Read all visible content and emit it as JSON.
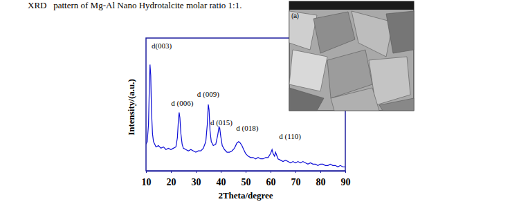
{
  "chart_data": {
    "type": "line",
    "title": "XRD   pattern of Mg-Al Nano Hydrotalcite molar ratio 1:1.",
    "x_label": "2Theta/degree",
    "y_label": "Intensity/(a.u.)",
    "x": [
      10,
      10.5,
      11,
      11.3,
      11.6,
      11.9,
      12.2,
      12.6,
      13,
      13.5,
      14,
      15,
      16,
      17,
      18,
      19,
      20,
      21,
      22,
      22.6,
      23,
      23.3,
      23.6,
      24,
      24.5,
      25,
      26,
      27,
      28,
      29,
      30,
      31,
      32,
      33,
      34,
      34.6,
      35,
      35.3,
      35.7,
      36.2,
      37,
      38,
      38.8,
      39.3,
      39.6,
      40,
      40.6,
      41.5,
      42.5,
      43.5,
      44.5,
      45.5,
      46.5,
      47.2,
      47.8,
      48.5,
      49.2,
      50,
      51,
      52,
      53,
      54,
      55,
      56,
      57,
      58,
      59,
      60,
      60.6,
      61,
      61.6,
      62,
      62.4,
      63,
      64,
      65,
      66,
      67,
      68,
      69,
      70,
      71,
      72,
      73,
      74,
      75,
      76,
      77,
      78,
      79,
      80,
      81,
      82,
      83,
      84,
      85,
      86,
      87,
      88,
      89,
      90
    ],
    "series": [
      {
        "name": "Mg-Al Nano Hydrotalcite",
        "color": "#0d0dd6",
        "values": [
          20,
          22,
          35,
          60,
          80,
          72,
          45,
          28,
          22,
          20,
          18,
          19,
          17,
          18,
          16,
          17,
          16,
          17,
          18,
          25,
          38,
          44,
          40,
          28,
          20,
          17,
          16,
          15,
          16,
          15,
          14,
          15,
          15,
          17,
          22,
          35,
          50,
          46,
          30,
          22,
          19,
          20,
          27,
          33,
          32,
          26,
          19,
          16,
          14,
          14,
          15,
          17,
          21,
          22,
          21,
          19,
          16,
          13,
          11,
          10,
          10,
          9,
          10,
          9,
          9,
          10,
          10,
          13,
          16,
          13,
          11,
          14,
          12,
          9,
          8,
          7,
          8,
          7,
          6,
          7,
          6,
          7,
          6,
          7,
          6,
          5,
          6,
          5,
          5,
          4,
          5,
          5,
          4,
          4,
          5,
          4,
          4,
          3,
          4,
          3,
          3
        ]
      }
    ],
    "xlim": [
      10,
      90
    ],
    "xticks": [
      10,
      20,
      30,
      40,
      50,
      60,
      70,
      80,
      90
    ],
    "ylim": [
      0,
      100
    ],
    "tick_labels": "x",
    "annotations": [
      {
        "text": "d(003)",
        "x": 12.2,
        "y": 92
      },
      {
        "text": "d (006)",
        "x": 20.1,
        "y": 49
      },
      {
        "text": "d (009)",
        "x": 30.5,
        "y": 55.7
      },
      {
        "text": "d (015)",
        "x": 35.8,
        "y": 34.4
      },
      {
        "text": "d (018)",
        "x": 46.2,
        "y": 30.2
      },
      {
        "text": "d (110)",
        "x": 63.4,
        "y": 24
      }
    ],
    "inset_label": "(a)"
  }
}
